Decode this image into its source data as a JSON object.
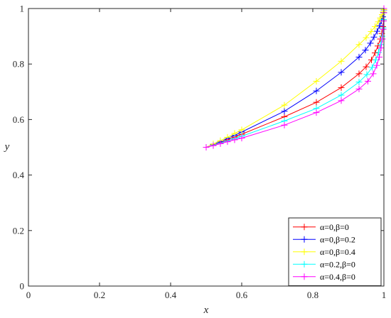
{
  "chart_data": {
    "type": "line",
    "title": "",
    "xlabel": "x",
    "ylabel": "y",
    "xlim": [
      0,
      1
    ],
    "ylim": [
      0,
      1
    ],
    "xticks": [
      "0",
      "0.2",
      "0.4",
      "0.6",
      "0.8",
      "1"
    ],
    "yticks": [
      "0",
      "0.2",
      "0.4",
      "0.6",
      "0.8",
      "1"
    ],
    "grid": false,
    "legend_position": "bottom-right",
    "marker": "plus",
    "series": [
      {
        "name": "α=0,β=0",
        "color": "#ff0000",
        "points": [
          [
            0.5,
            0.5
          ],
          [
            0.52,
            0.508
          ],
          [
            0.54,
            0.517
          ],
          [
            0.56,
            0.527
          ],
          [
            0.58,
            0.537
          ],
          [
            0.6,
            0.547
          ],
          [
            0.72,
            0.61
          ],
          [
            0.81,
            0.662
          ],
          [
            0.88,
            0.715
          ],
          [
            0.93,
            0.765
          ],
          [
            0.95,
            0.79
          ],
          [
            0.965,
            0.815
          ],
          [
            0.975,
            0.84
          ],
          [
            0.983,
            0.865
          ],
          [
            0.99,
            0.89
          ],
          [
            0.994,
            0.91
          ],
          [
            0.997,
            0.935
          ],
          [
            0.999,
            0.96
          ],
          [
            1.0,
            0.985
          ],
          [
            1.0,
            1.0
          ]
        ]
      },
      {
        "name": "α=0,β=0.2",
        "color": "#0000ff",
        "points": [
          [
            0.5,
            0.5
          ],
          [
            0.52,
            0.51
          ],
          [
            0.54,
            0.52
          ],
          [
            0.56,
            0.532
          ],
          [
            0.58,
            0.543
          ],
          [
            0.6,
            0.555
          ],
          [
            0.72,
            0.63
          ],
          [
            0.81,
            0.703
          ],
          [
            0.88,
            0.77
          ],
          [
            0.93,
            0.825
          ],
          [
            0.948,
            0.85
          ],
          [
            0.962,
            0.875
          ],
          [
            0.972,
            0.897
          ],
          [
            0.981,
            0.918
          ],
          [
            0.988,
            0.938
          ],
          [
            0.993,
            0.955
          ],
          [
            0.997,
            0.97
          ],
          [
            0.999,
            0.985
          ],
          [
            1.0,
            0.995
          ],
          [
            1.0,
            1.0
          ]
        ]
      },
      {
        "name": "α=0,β=0.4",
        "color": "#ffff00",
        "points": [
          [
            0.5,
            0.5
          ],
          [
            0.52,
            0.512
          ],
          [
            0.54,
            0.524
          ],
          [
            0.56,
            0.536
          ],
          [
            0.58,
            0.55
          ],
          [
            0.6,
            0.563
          ],
          [
            0.72,
            0.652
          ],
          [
            0.81,
            0.738
          ],
          [
            0.88,
            0.81
          ],
          [
            0.93,
            0.87
          ],
          [
            0.95,
            0.895
          ],
          [
            0.964,
            0.917
          ],
          [
            0.975,
            0.935
          ],
          [
            0.984,
            0.952
          ],
          [
            0.99,
            0.966
          ],
          [
            0.995,
            0.978
          ],
          [
            0.998,
            0.988
          ],
          [
            1.0,
            0.996
          ],
          [
            1.0,
            1.0
          ]
        ]
      },
      {
        "name": "α=0.2,β=0",
        "color": "#00ffff",
        "points": [
          [
            0.5,
            0.5
          ],
          [
            0.52,
            0.507
          ],
          [
            0.54,
            0.515
          ],
          [
            0.56,
            0.523
          ],
          [
            0.58,
            0.532
          ],
          [
            0.6,
            0.54
          ],
          [
            0.72,
            0.595
          ],
          [
            0.81,
            0.64
          ],
          [
            0.88,
            0.688
          ],
          [
            0.93,
            0.735
          ],
          [
            0.952,
            0.762
          ],
          [
            0.967,
            0.788
          ],
          [
            0.977,
            0.815
          ],
          [
            0.985,
            0.842
          ],
          [
            0.991,
            0.87
          ],
          [
            0.995,
            0.9
          ],
          [
            0.998,
            0.93
          ],
          [
            0.999,
            0.96
          ],
          [
            1.0,
            0.985
          ],
          [
            1.0,
            1.0
          ]
        ]
      },
      {
        "name": "α=0.4,β=0",
        "color": "#ff00ff",
        "points": [
          [
            0.5,
            0.5
          ],
          [
            0.52,
            0.506
          ],
          [
            0.54,
            0.513
          ],
          [
            0.56,
            0.52
          ],
          [
            0.58,
            0.527
          ],
          [
            0.6,
            0.533
          ],
          [
            0.72,
            0.58
          ],
          [
            0.81,
            0.625
          ],
          [
            0.88,
            0.668
          ],
          [
            0.93,
            0.71
          ],
          [
            0.955,
            0.738
          ],
          [
            0.97,
            0.765
          ],
          [
            0.98,
            0.795
          ],
          [
            0.987,
            0.825
          ],
          [
            0.992,
            0.858
          ],
          [
            0.996,
            0.89
          ],
          [
            0.998,
            0.925
          ],
          [
            0.999,
            0.955
          ],
          [
            1.0,
            0.985
          ],
          [
            1.0,
            1.0
          ]
        ]
      }
    ]
  }
}
